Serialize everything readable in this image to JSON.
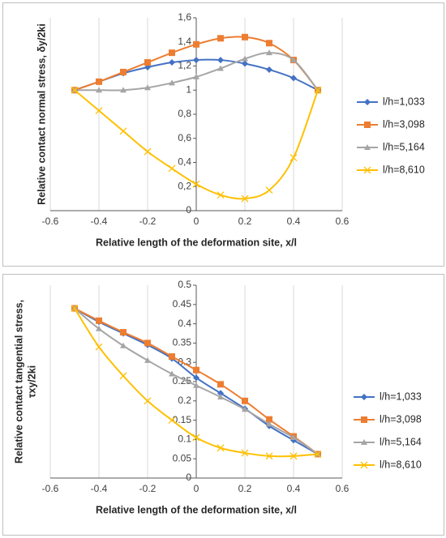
{
  "chart_data": [
    {
      "type": "line",
      "xlabel": "Relative length of the deformation site, x/l",
      "ylabel": [
        "Relative contact normal stress, δy/2ki"
      ],
      "x": [
        -0.5,
        -0.4,
        -0.3,
        -0.2,
        -0.1,
        0,
        0.1,
        0.2,
        0.3,
        0.4,
        0.5
      ],
      "xlim": [
        -0.6,
        0.6
      ],
      "xticks": [
        -0.6,
        -0.4,
        -0.2,
        0,
        0.2,
        0.4,
        0.6
      ],
      "ylim": [
        0,
        1.6
      ],
      "yticks": [
        0,
        {
          "value": 0.2,
          "label": "0,2"
        },
        {
          "value": 0.4,
          "label": "0,4"
        },
        {
          "value": 0.6,
          "label": "0,6"
        },
        {
          "value": 0.8,
          "label": "0,8"
        },
        1,
        {
          "value": 1.2,
          "label": "1,2"
        },
        {
          "value": 1.4,
          "label": "1,4"
        },
        {
          "value": 1.6,
          "label": "1,6"
        }
      ],
      "grid": "x",
      "legend": "right",
      "series": [
        {
          "name": "l/h=1,033",
          "color": "#4472c4",
          "marker": "diamond",
          "values": [
            1,
            1.07,
            1.14,
            1.19,
            1.23,
            1.25,
            1.25,
            1.22,
            1.17,
            1.1,
            1.0
          ]
        },
        {
          "name": "l/h=3,098",
          "color": "#ed7d31",
          "marker": "square",
          "values": [
            1,
            1.07,
            1.15,
            1.23,
            1.31,
            1.38,
            1.43,
            1.44,
            1.39,
            1.25,
            1.0
          ]
        },
        {
          "name": "l/h=5,164",
          "color": "#a5a5a5",
          "marker": "triangle",
          "values": [
            1,
            1.0,
            1.0,
            1.02,
            1.06,
            1.11,
            1.18,
            1.26,
            1.31,
            1.25,
            1.0
          ]
        },
        {
          "name": "l/h=8,610",
          "color": "#ffc000",
          "marker": "x",
          "values": [
            1,
            0.83,
            0.66,
            0.49,
            0.35,
            0.22,
            0.13,
            0.1,
            0.17,
            0.44,
            1.0
          ]
        }
      ]
    },
    {
      "type": "line",
      "xlabel": "Relative length of the deformation site, x/l",
      "ylabel": [
        "Relative contact tangential stress,",
        "τxy/2ki"
      ],
      "x": [
        -0.5,
        -0.4,
        -0.3,
        -0.2,
        -0.1,
        0,
        0.1,
        0.2,
        0.3,
        0.4,
        0.5
      ],
      "xlim": [
        -0.6,
        0.6
      ],
      "xticks": [
        -0.6,
        -0.4,
        -0.2,
        0,
        0.2,
        0.4,
        0.6
      ],
      "ylim": [
        0,
        0.5
      ],
      "yticks": [
        0,
        0.05,
        0.1,
        0.15,
        0.2,
        0.25,
        0.3,
        0.35,
        0.4,
        0.45,
        0.5
      ],
      "grid": "x",
      "legend": "right",
      "series": [
        {
          "name": "l/h=1,033",
          "color": "#4472c4",
          "marker": "diamond",
          "values": [
            0.44,
            0.405,
            0.375,
            0.345,
            0.31,
            0.26,
            0.22,
            0.18,
            0.135,
            0.098,
            0.062
          ]
        },
        {
          "name": "l/h=3,098",
          "color": "#ed7d31",
          "marker": "square",
          "values": [
            0.44,
            0.408,
            0.378,
            0.35,
            0.315,
            0.28,
            0.243,
            0.2,
            0.152,
            0.108,
            0.062
          ]
        },
        {
          "name": "l/h=5,164",
          "color": "#a5a5a5",
          "marker": "triangle",
          "values": [
            0.44,
            0.387,
            0.343,
            0.305,
            0.27,
            0.24,
            0.21,
            0.178,
            0.14,
            0.105,
            0.062
          ]
        },
        {
          "name": "l/h=8,610",
          "color": "#ffc000",
          "marker": "x",
          "values": [
            0.44,
            0.34,
            0.265,
            0.2,
            0.15,
            0.105,
            0.078,
            0.065,
            0.057,
            0.057,
            0.062
          ]
        }
      ]
    }
  ]
}
